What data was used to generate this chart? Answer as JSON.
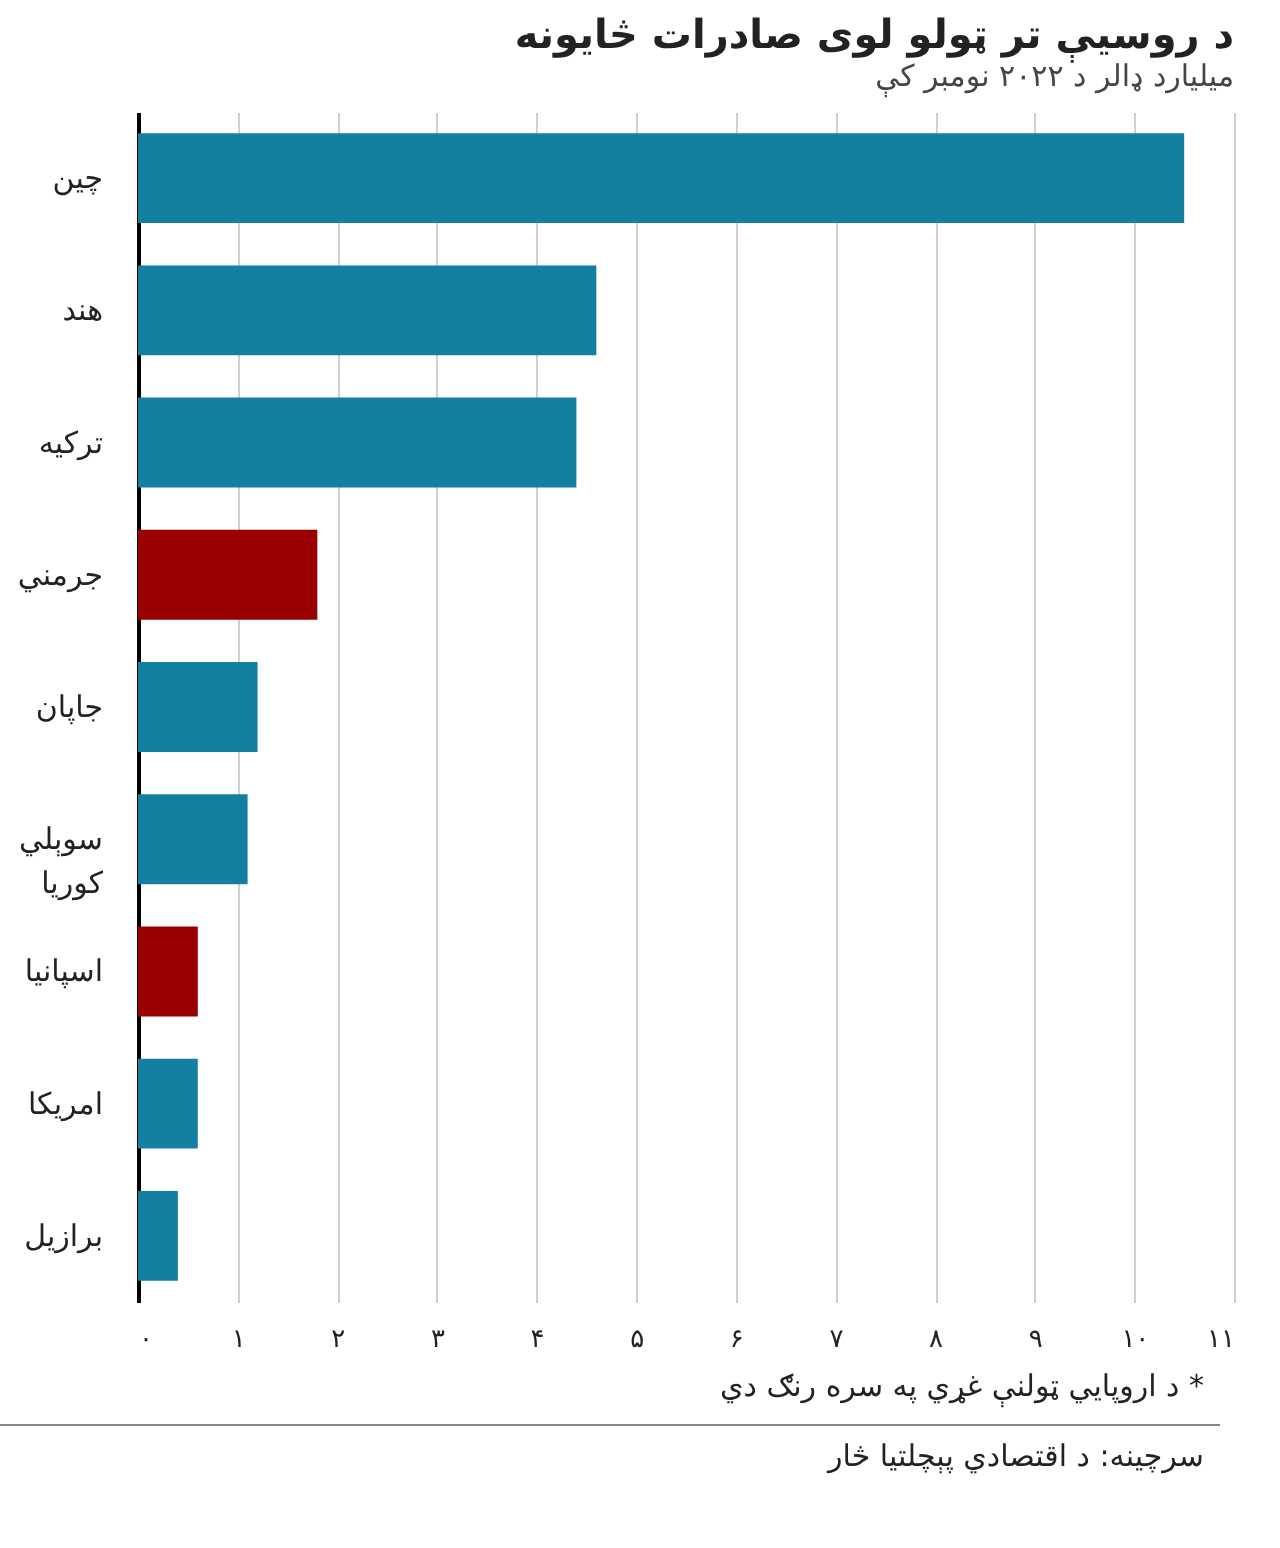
{
  "chart_data": {
    "type": "bar",
    "orientation": "horizontal",
    "title": "د روسيې تر ټولو لوی صادرات څايونه",
    "subtitle": "ميليارد ډالر د ۲۰۲۲ نومبر کې",
    "categories": [
      "چين",
      "هند",
      "ترکيه",
      "جرمني",
      "جاپان",
      "سوېلي کوريا",
      "اسپانيا",
      "امريکا",
      "برازيل"
    ],
    "values": [
      10.5,
      4.6,
      4.4,
      1.8,
      1.2,
      1.1,
      0.6,
      0.6,
      0.4
    ],
    "colors": [
      "#1380a1",
      "#1380a1",
      "#1380a1",
      "#990000",
      "#1380a1",
      "#1380a1",
      "#990000",
      "#1380a1",
      "#1380a1"
    ],
    "xlim": [
      0,
      11
    ],
    "xticks": [
      {
        "value": 0,
        "label": "۰"
      },
      {
        "value": 1,
        "label": "۱"
      },
      {
        "value": 2,
        "label": "۲"
      },
      {
        "value": 3,
        "label": "۳"
      },
      {
        "value": 4,
        "label": "۴"
      },
      {
        "value": 5,
        "label": "۵"
      },
      {
        "value": 6,
        "label": "۶"
      },
      {
        "value": 7,
        "label": "۷"
      },
      {
        "value": 8,
        "label": "۸"
      },
      {
        "value": 9,
        "label": "۹"
      },
      {
        "value": 10,
        "label": "۱۰"
      },
      {
        "value": 11,
        "label": "۱۱"
      }
    ],
    "grid": "x",
    "annotations": [
      "* د اروپايي ټولنې غړي په سره رنګ دي",
      "سرچينه: د اقتصادي پېچلتيا څار"
    ]
  }
}
